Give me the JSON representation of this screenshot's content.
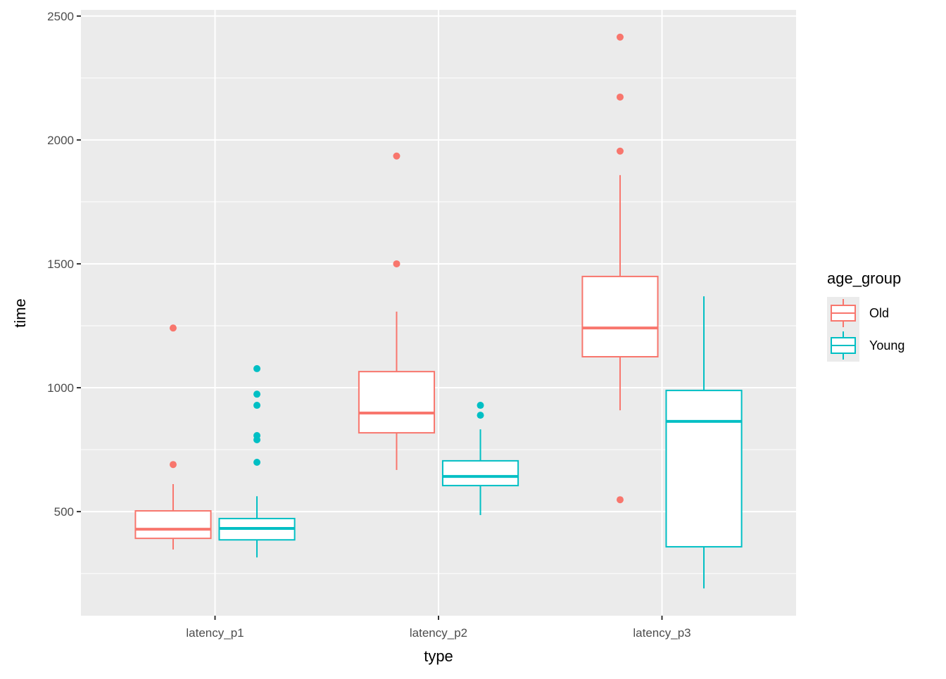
{
  "chart_data": {
    "type": "boxplot",
    "title": "",
    "xlabel": "type",
    "ylabel": "time",
    "ylim": [
      80,
      2525
    ],
    "yticks": [
      500,
      1000,
      1500,
      2000,
      2500
    ],
    "yminor": [
      250,
      750,
      1250,
      1750,
      2250
    ],
    "grid": true,
    "categories": [
      "latency_p1",
      "latency_p2",
      "latency_p3"
    ],
    "legend": {
      "title": "age_group",
      "placement": "right"
    },
    "series": [
      {
        "name": "Old",
        "color": "#F8766D",
        "boxes": [
          {
            "low": 347,
            "q1": 392,
            "median": 429,
            "q3": 503,
            "high": 611,
            "outliers": [
              690,
              1241
            ]
          },
          {
            "low": 668,
            "q1": 818,
            "median": 898,
            "q3": 1065,
            "high": 1307,
            "outliers": [
              1500,
              1935
            ]
          },
          {
            "low": 909,
            "q1": 1125,
            "median": 1241,
            "q3": 1449,
            "high": 1858,
            "outliers": [
              548,
              1955,
              2173,
              2415
            ]
          }
        ]
      },
      {
        "name": "Young",
        "color": "#00BFC4",
        "boxes": [
          {
            "low": 315,
            "q1": 386,
            "median": 432,
            "q3": 472,
            "high": 562,
            "outliers": [
              699,
              790,
              807,
              929,
              974,
              1077
            ]
          },
          {
            "low": 486,
            "q1": 605,
            "median": 642,
            "q3": 705,
            "high": 832,
            "outliers": [
              889,
              929
            ]
          },
          {
            "low": 190,
            "q1": 358,
            "median": 864,
            "q3": 989,
            "high": 1369,
            "outliers": []
          }
        ]
      }
    ]
  }
}
